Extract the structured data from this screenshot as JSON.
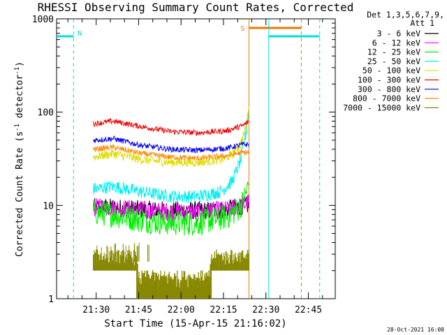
{
  "chart_data": {
    "type": "line",
    "title": "RHESSI Observing Summary Count Rates, Corrected",
    "xlabel": "Start Time (15-Apr-15 21:16:02)",
    "ylabel_main": "Corrected Count Rate (s",
    "ylabel_sup1": "-1",
    "ylabel_mid": " detector",
    "ylabel_sup2": "-1",
    "ylabel_end": ")",
    "yscale": "log",
    "ylim": [
      1,
      1000
    ],
    "xlim_minutes": [
      0,
      98.5
    ],
    "x_unit": "minutes after 21:16:02",
    "y_ticks": [
      {
        "value": 1,
        "label": "1"
      },
      {
        "value": 10,
        "label": "10"
      },
      {
        "value": 100,
        "label": "100"
      },
      {
        "value": 1000,
        "label": "1000"
      }
    ],
    "x_ticks": [
      {
        "minute": 14,
        "label": "21:30"
      },
      {
        "minute": 29,
        "label": "21:45"
      },
      {
        "minute": 44,
        "label": "22:00"
      },
      {
        "minute": 59,
        "label": "22:15"
      },
      {
        "minute": 74,
        "label": "22:30"
      },
      {
        "minute": 89,
        "label": "22:45"
      }
    ],
    "legend": {
      "placement": "right",
      "header": [
        "Det 1,3,5,6,7,9,",
        "Att 1"
      ],
      "entries": [
        {
          "label": "3 - 6 keV",
          "color": "#000000"
        },
        {
          "label": "6 - 12 keV",
          "color": "#ff00ff"
        },
        {
          "label": "12 - 25 keV",
          "color": "#00ee00"
        },
        {
          "label": "25 - 50 keV",
          "color": "#00eeee"
        },
        {
          "label": "50 - 100 keV",
          "color": "#dddd00"
        },
        {
          "label": "100 - 300 keV",
          "color": "#ee0000"
        },
        {
          "label": "300 - 800 keV",
          "color": "#0000ee"
        },
        {
          "label": "800 - 7000 keV",
          "color": "#ff8800"
        },
        {
          "label": "7000 - 15000 keV",
          "color": "#888800"
        }
      ]
    },
    "data_window_minutes": [
      13,
      68
    ],
    "series": [
      {
        "name": "3 - 6 keV",
        "color": "#000000",
        "x": [
          13,
          20,
          30,
          40,
          50,
          60,
          66,
          68
        ],
        "y": [
          9.5,
          9.5,
          9,
          8.8,
          8.8,
          9,
          10,
          10
        ],
        "noise": 0.1
      },
      {
        "name": "6 - 12 keV",
        "color": "#ff00ff",
        "x": [
          13,
          20,
          30,
          40,
          50,
          60,
          66,
          68
        ],
        "y": [
          9.5,
          9.5,
          9,
          8.5,
          8.5,
          9,
          10,
          11
        ],
        "noise": 0.1
      },
      {
        "name": "12 - 25 keV",
        "color": "#00ee00",
        "x": [
          13,
          20,
          30,
          40,
          50,
          60,
          64,
          66,
          68
        ],
        "y": [
          8.5,
          8,
          7,
          6.5,
          6.5,
          7.5,
          9,
          11,
          17
        ],
        "noise": 0.14
      },
      {
        "name": "25 - 50 keV",
        "color": "#00eeee",
        "x": [
          13,
          20,
          30,
          40,
          50,
          58,
          62,
          65,
          67,
          68
        ],
        "y": [
          15,
          16,
          14,
          12.5,
          12.5,
          14,
          18,
          30,
          60,
          110
        ],
        "noise": 0.07
      },
      {
        "name": "50 - 100 keV",
        "color": "#dddd00",
        "x": [
          13,
          20,
          30,
          40,
          50,
          58,
          62,
          65,
          67,
          68
        ],
        "y": [
          33,
          36,
          31,
          29,
          29,
          31,
          35,
          45,
          70,
          120
        ],
        "noise": 0.05
      },
      {
        "name": "100 - 300 keV",
        "color": "#ee0000",
        "x": [
          13,
          20,
          30,
          40,
          50,
          60,
          66,
          68
        ],
        "y": [
          75,
          80,
          70,
          62,
          60,
          63,
          72,
          80
        ],
        "noise": 0.03
      },
      {
        "name": "300 - 800 keV",
        "color": "#0000ee",
        "x": [
          13,
          20,
          30,
          40,
          50,
          60,
          66,
          68
        ],
        "y": [
          50,
          52,
          44,
          40,
          39,
          41,
          45,
          45
        ],
        "noise": 0.03
      },
      {
        "name": "800 - 7000 keV",
        "color": "#ff8800",
        "x": [
          13,
          20,
          30,
          40,
          50,
          60,
          66,
          68
        ],
        "y": [
          40,
          42,
          36,
          33,
          32,
          34,
          37,
          37
        ],
        "noise": 0.03
      },
      {
        "name": "7000 - 15000 keV",
        "color": "#888800",
        "x": [
          13,
          28,
          29,
          54,
          55,
          68
        ],
        "y": [
          2.5,
          2.5,
          1.5,
          1.5,
          2.5,
          2.5
        ],
        "noise": 0.5,
        "fill_band": true
      }
    ],
    "annotations": [
      {
        "kind": "night",
        "label": "N",
        "color": "#00dddd",
        "start": -5,
        "end": 6,
        "dashed_at": 6
      },
      {
        "kind": "saa",
        "label": "S",
        "color": "#ee7700",
        "start": 68,
        "end": 86.5,
        "dashed_at": 86.5
      },
      {
        "kind": "night",
        "label": "",
        "color": "#00dddd",
        "start": 75,
        "end": 93,
        "dashed_at": 93
      }
    ]
  },
  "footer": {
    "timestamp": "28-Oct-2021 16:08"
  }
}
